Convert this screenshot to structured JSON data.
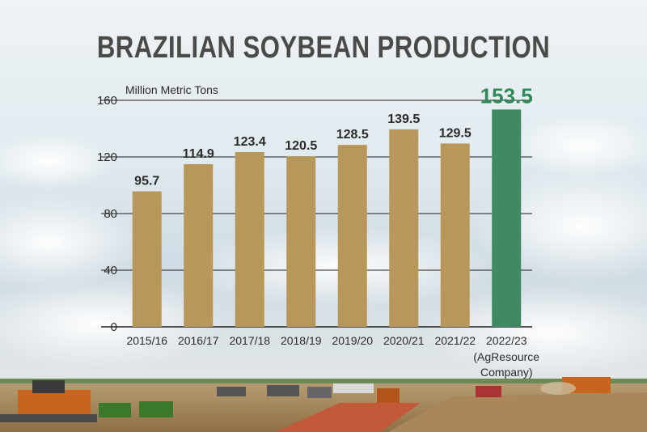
{
  "chart_data": {
    "type": "bar",
    "title": "BRAZILIAN SOYBEAN PRODUCTION",
    "unit_label": "Million Metric Tons",
    "categories": [
      "2015/16",
      "2016/17",
      "2017/18",
      "2018/19",
      "2019/20",
      "2020/21",
      "2021/22",
      "2022/23"
    ],
    "category_notes": [
      "",
      "",
      "",
      "",
      "",
      "",
      "",
      "(AgResource Company)"
    ],
    "values": [
      95.7,
      114.9,
      123.4,
      120.5,
      128.5,
      139.5,
      129.5,
      153.5
    ],
    "ylim": [
      0,
      160
    ],
    "yticks": [
      0,
      40,
      80,
      120,
      160
    ],
    "grid": true,
    "colors": {
      "bar": "#b8985a",
      "highlight_bar": "#3f8a62",
      "highlight_label": "#2e8a57",
      "label": "#2b2b2b",
      "title": "#4a4a48"
    },
    "highlight_index": 7
  }
}
